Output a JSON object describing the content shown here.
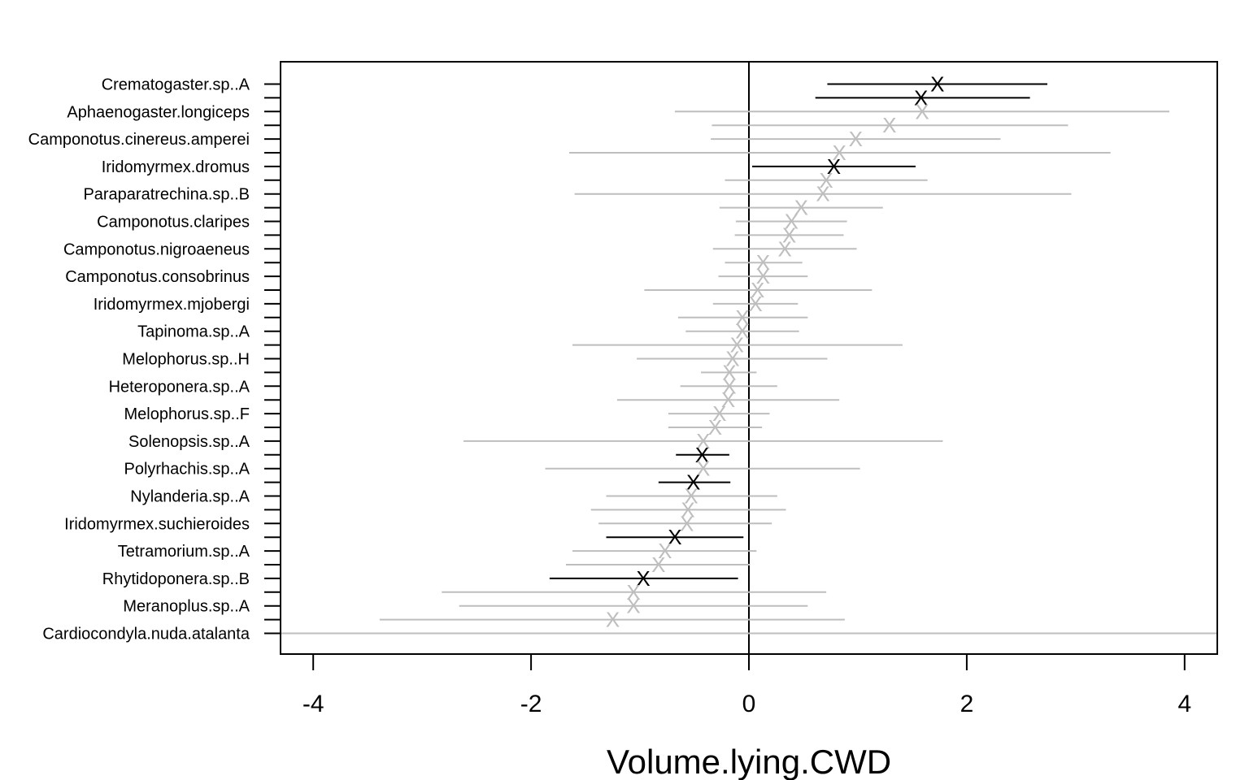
{
  "chart_data": {
    "type": "scatter",
    "subtype": "coefficient-interval-plot",
    "title": "",
    "xlabel": "Volume.lying.CWD",
    "ylabel": "",
    "xlim": [
      -4.3,
      4.3
    ],
    "x_ticks": [
      -4,
      -2,
      0,
      2,
      4
    ],
    "x_tick_labels": [
      "-4",
      "-2",
      "0",
      "2",
      "4"
    ],
    "reference_line_x": 0,
    "marker": "X",
    "colors": {
      "significant": "#000000",
      "not_significant": "#bebebe"
    },
    "rows": [
      {
        "label": "Crematogaster.sp..A",
        "estimate": 1.73,
        "lower": 0.72,
        "upper": 2.74,
        "significant": true
      },
      {
        "label": "",
        "estimate": 1.58,
        "lower": 0.61,
        "upper": 2.58,
        "significant": true
      },
      {
        "label": "Aphaenogaster.longiceps",
        "estimate": 1.59,
        "lower": -0.68,
        "upper": 3.86,
        "significant": false
      },
      {
        "label": "",
        "estimate": 1.29,
        "lower": -0.34,
        "upper": 2.93,
        "significant": false
      },
      {
        "label": "Camponotus.cinereus.amperei",
        "estimate": 0.98,
        "lower": -0.35,
        "upper": 2.31,
        "significant": false
      },
      {
        "label": "",
        "estimate": 0.83,
        "lower": -1.65,
        "upper": 3.32,
        "significant": false
      },
      {
        "label": "Iridomyrmex.dromus",
        "estimate": 0.78,
        "lower": 0.03,
        "upper": 1.53,
        "significant": true
      },
      {
        "label": "",
        "estimate": 0.71,
        "lower": -0.22,
        "upper": 1.64,
        "significant": false
      },
      {
        "label": "Paraparatrechina.sp..B",
        "estimate": 0.68,
        "lower": -1.6,
        "upper": 2.96,
        "significant": false
      },
      {
        "label": "",
        "estimate": 0.48,
        "lower": -0.27,
        "upper": 1.23,
        "significant": false
      },
      {
        "label": "Camponotus.claripes",
        "estimate": 0.39,
        "lower": -0.12,
        "upper": 0.9,
        "significant": false
      },
      {
        "label": "",
        "estimate": 0.37,
        "lower": -0.13,
        "upper": 0.87,
        "significant": false
      },
      {
        "label": "Camponotus.nigroaeneus",
        "estimate": 0.33,
        "lower": -0.33,
        "upper": 0.99,
        "significant": false
      },
      {
        "label": "",
        "estimate": 0.13,
        "lower": -0.22,
        "upper": 0.49,
        "significant": false
      },
      {
        "label": "Camponotus.consobrinus",
        "estimate": 0.13,
        "lower": -0.28,
        "upper": 0.54,
        "significant": false
      },
      {
        "label": "",
        "estimate": 0.08,
        "lower": -0.96,
        "upper": 1.13,
        "significant": false
      },
      {
        "label": "Iridomyrmex.mjobergi",
        "estimate": 0.06,
        "lower": -0.33,
        "upper": 0.45,
        "significant": false
      },
      {
        "label": "",
        "estimate": -0.06,
        "lower": -0.65,
        "upper": 0.54,
        "significant": false
      },
      {
        "label": "Tapinoma.sp..A",
        "estimate": -0.06,
        "lower": -0.58,
        "upper": 0.46,
        "significant": false
      },
      {
        "label": "",
        "estimate": -0.11,
        "lower": -1.62,
        "upper": 1.41,
        "significant": false
      },
      {
        "label": "Melophorus.sp..H",
        "estimate": -0.15,
        "lower": -1.03,
        "upper": 0.72,
        "significant": false
      },
      {
        "label": "",
        "estimate": -0.18,
        "lower": -0.44,
        "upper": 0.07,
        "significant": false
      },
      {
        "label": "Heteroponera.sp..A",
        "estimate": -0.18,
        "lower": -0.63,
        "upper": 0.26,
        "significant": false
      },
      {
        "label": "",
        "estimate": -0.19,
        "lower": -1.21,
        "upper": 0.83,
        "significant": false
      },
      {
        "label": "Melophorus.sp..F",
        "estimate": -0.27,
        "lower": -0.74,
        "upper": 0.19,
        "significant": false
      },
      {
        "label": "",
        "estimate": -0.31,
        "lower": -0.74,
        "upper": 0.12,
        "significant": false
      },
      {
        "label": "Solenopsis.sp..A",
        "estimate": -0.42,
        "lower": -2.62,
        "upper": 1.78,
        "significant": false
      },
      {
        "label": "",
        "estimate": -0.43,
        "lower": -0.67,
        "upper": -0.18,
        "significant": true
      },
      {
        "label": "Polyrhachis.sp..A",
        "estimate": -0.42,
        "lower": -1.87,
        "upper": 1.02,
        "significant": false
      },
      {
        "label": "",
        "estimate": -0.51,
        "lower": -0.83,
        "upper": -0.17,
        "significant": true
      },
      {
        "label": "Nylanderia.sp..A",
        "estimate": -0.53,
        "lower": -1.31,
        "upper": 0.26,
        "significant": false
      },
      {
        "label": "",
        "estimate": -0.56,
        "lower": -1.45,
        "upper": 0.34,
        "significant": false
      },
      {
        "label": "Iridomyrmex.suchieroides",
        "estimate": -0.57,
        "lower": -1.38,
        "upper": 0.21,
        "significant": false
      },
      {
        "label": "",
        "estimate": -0.68,
        "lower": -1.31,
        "upper": -0.05,
        "significant": true
      },
      {
        "label": "Tetramorium.sp..A",
        "estimate": -0.77,
        "lower": -1.62,
        "upper": 0.07,
        "significant": false
      },
      {
        "label": "",
        "estimate": -0.83,
        "lower": -1.68,
        "upper": 0.01,
        "significant": false
      },
      {
        "label": "Rhytidoponera.sp..B",
        "estimate": -0.97,
        "lower": -1.83,
        "upper": -0.1,
        "significant": true
      },
      {
        "label": "",
        "estimate": -1.06,
        "lower": -2.82,
        "upper": 0.71,
        "significant": false
      },
      {
        "label": "Meranoplus.sp..A",
        "estimate": -1.06,
        "lower": -2.66,
        "upper": 0.54,
        "significant": false
      },
      {
        "label": "",
        "estimate": -1.25,
        "lower": -3.39,
        "upper": 0.88,
        "significant": false
      },
      {
        "label": "Cardiocondyla.nuda.atalanta",
        "estimate": null,
        "lower": -4.3,
        "upper": 4.3,
        "significant": false
      }
    ]
  }
}
